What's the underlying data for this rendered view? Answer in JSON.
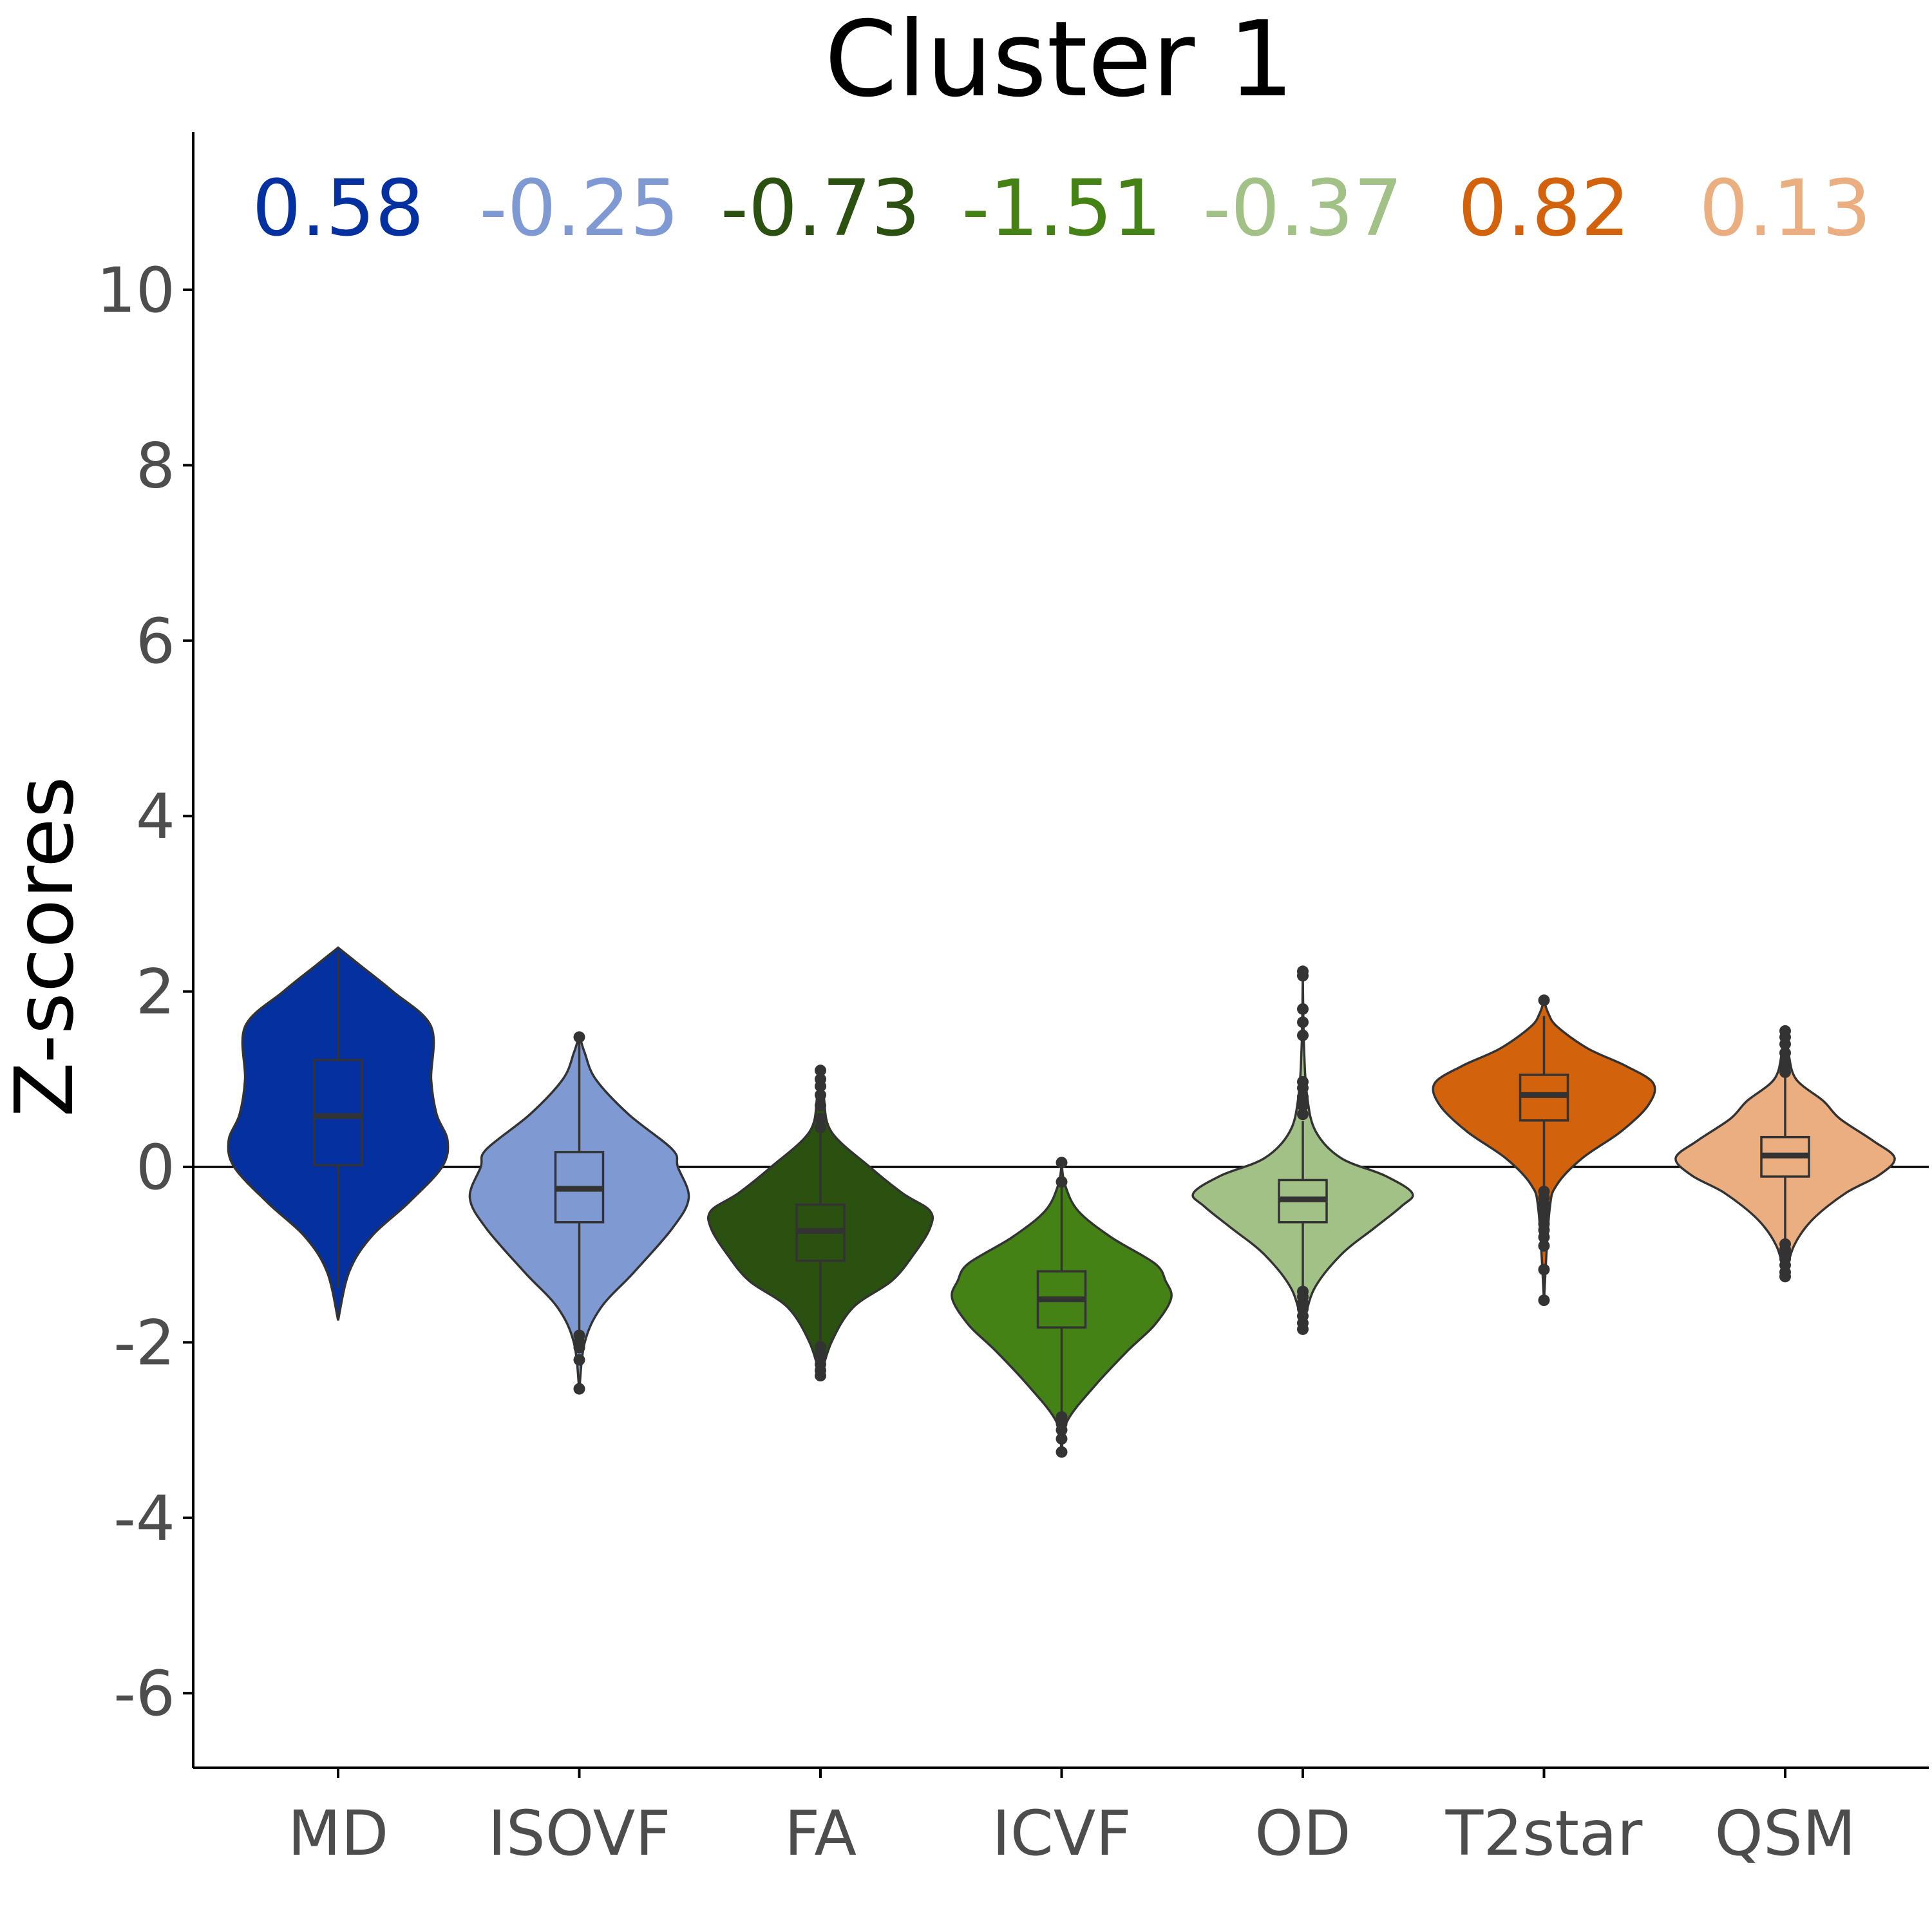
{
  "chart_data": {
    "type": "violin",
    "title": "Cluster 1",
    "xlabel": "",
    "ylabel": "Z-scores",
    "ylim": [
      -6.8,
      11.8
    ],
    "yticks": [
      -6,
      -4,
      -2,
      0,
      2,
      4,
      6,
      8,
      10
    ],
    "ytick_labels": [
      "-6",
      "-4",
      "-2",
      "0",
      "2",
      "4",
      "6",
      "8",
      "10"
    ],
    "reference_line": 0,
    "grid": false,
    "legend": "none",
    "categories": [
      "MD",
      "ISOVF",
      "FA",
      "ICVF",
      "OD",
      "T2star",
      "QSM"
    ],
    "median_labels": [
      "0.58",
      "-0.25",
      "-0.73",
      "-1.51",
      "-0.37",
      "0.82",
      "0.13"
    ],
    "series": [
      {
        "category": "MD",
        "color": "#0530a0",
        "median": 0.58,
        "q1": 0.02,
        "q3": 1.22,
        "whisker_low": -1.38,
        "whisker_high": 2.44,
        "violin": {
          "min": -1.75,
          "max": 2.5,
          "y": [
            -1.75,
            -1.2,
            -0.8,
            -0.4,
            0.0,
            0.3,
            0.6,
            1.0,
            1.6,
            2.0,
            2.3,
            2.5
          ],
          "w": [
            0.0,
            0.1,
            0.3,
            0.65,
            0.95,
            1.0,
            0.9,
            0.85,
            0.85,
            0.5,
            0.2,
            0.0
          ]
        },
        "outliers": []
      },
      {
        "category": "ISOVF",
        "color": "#7f99d2",
        "median": -0.25,
        "q1": -0.63,
        "q3": 0.17,
        "whisker_low": -1.88,
        "whisker_high": 1.42,
        "violin": {
          "min": -2.55,
          "max": 1.5,
          "y": [
            -2.55,
            -2.0,
            -1.6,
            -1.2,
            -0.7,
            -0.35,
            0.0,
            0.2,
            0.6,
            1.0,
            1.3,
            1.5
          ],
          "w": [
            0.0,
            0.05,
            0.2,
            0.5,
            0.85,
            1.0,
            0.9,
            0.85,
            0.45,
            0.15,
            0.05,
            0.0
          ]
        },
        "outliers": [
          -1.92,
          -2.0,
          -2.06,
          -2.2,
          -2.53,
          1.48
        ]
      },
      {
        "category": "FA",
        "color": "#2a510f",
        "median": -0.73,
        "q1": -1.07,
        "q3": -0.43,
        "whisker_low": -1.98,
        "whisker_high": 0.38,
        "violin": {
          "min": -2.4,
          "max": 1.1,
          "y": [
            -2.4,
            -2.0,
            -1.6,
            -1.3,
            -1.0,
            -0.7,
            -0.5,
            -0.3,
            0.0,
            0.4,
            0.8,
            1.1
          ],
          "w": [
            0.0,
            0.1,
            0.3,
            0.65,
            0.85,
            1.0,
            1.0,
            0.75,
            0.45,
            0.1,
            0.03,
            0.0
          ]
        },
        "outliers": [
          -2.05,
          -2.12,
          -2.18,
          -2.25,
          -2.32,
          -2.38,
          0.45,
          0.55,
          0.7,
          0.82,
          0.92,
          1.0,
          1.1
        ]
      },
      {
        "category": "ICVF",
        "color": "#448215",
        "median": -1.51,
        "q1": -1.83,
        "q3": -1.19,
        "whisker_low": -2.8,
        "whisker_high": -0.23,
        "violin": {
          "min": -3.25,
          "max": 0.05,
          "y": [
            -3.25,
            -2.9,
            -2.5,
            -2.1,
            -1.8,
            -1.5,
            -1.3,
            -1.1,
            -0.8,
            -0.5,
            -0.2,
            0.05
          ],
          "w": [
            0.0,
            0.05,
            0.3,
            0.6,
            0.85,
            1.0,
            0.95,
            0.85,
            0.45,
            0.15,
            0.03,
            0.0
          ]
        },
        "outliers": [
          -2.85,
          -2.93,
          -3.0,
          -3.1,
          -3.25,
          -0.17,
          0.05
        ]
      },
      {
        "category": "OD",
        "color": "#a1c186",
        "median": -0.37,
        "q1": -0.63,
        "q3": -0.15,
        "whisker_low": -1.4,
        "whisker_high": 0.52,
        "violin": {
          "min": -1.85,
          "max": 2.2,
          "y": [
            -1.85,
            -1.4,
            -1.0,
            -0.7,
            -0.45,
            -0.3,
            -0.1,
            0.1,
            0.4,
            0.8,
            1.4,
            2.2
          ],
          "w": [
            0.0,
            0.1,
            0.35,
            0.65,
            0.9,
            1.0,
            0.75,
            0.35,
            0.12,
            0.04,
            0.01,
            0.0
          ]
        },
        "outliers": [
          -1.42,
          -1.48,
          -1.55,
          -1.62,
          -1.7,
          -1.78,
          -1.85,
          0.6,
          0.7,
          0.8,
          0.9,
          0.97,
          1.5,
          1.65,
          1.8,
          2.18,
          2.23
        ]
      },
      {
        "category": "T2star",
        "color": "#d2620b",
        "median": 0.82,
        "q1": 0.53,
        "q3": 1.05,
        "whisker_low": -0.25,
        "whisker_high": 1.72,
        "violin": {
          "min": -1.52,
          "max": 1.9,
          "y": [
            -1.52,
            -0.5,
            -0.2,
            0.1,
            0.4,
            0.7,
            0.95,
            1.15,
            1.35,
            1.6,
            1.75,
            1.9
          ],
          "w": [
            0.0,
            0.05,
            0.12,
            0.35,
            0.7,
            0.95,
            1.0,
            0.75,
            0.4,
            0.12,
            0.04,
            0.0
          ]
        },
        "outliers": [
          -0.28,
          -0.35,
          -0.42,
          -0.5,
          -0.58,
          -0.65,
          -0.72,
          -0.8,
          -0.9,
          -1.17,
          -1.52,
          1.9
        ]
      },
      {
        "category": "QSM",
        "color": "#eaae80",
        "median": 0.13,
        "q1": -0.11,
        "q3": 0.34,
        "whisker_low": -0.85,
        "whisker_high": 1.05,
        "violin": {
          "min": -1.25,
          "max": 1.55,
          "y": [
            -1.25,
            -0.9,
            -0.6,
            -0.3,
            -0.1,
            0.1,
            0.3,
            0.55,
            0.75,
            1.0,
            1.3,
            1.55
          ],
          "w": [
            0.0,
            0.08,
            0.25,
            0.55,
            0.85,
            1.0,
            0.8,
            0.5,
            0.35,
            0.1,
            0.03,
            0.0
          ]
        },
        "outliers": [
          -0.88,
          -0.94,
          -1.0,
          -1.05,
          -1.12,
          -1.2,
          -1.25,
          1.08,
          1.14,
          1.2,
          1.3,
          1.4,
          1.48,
          1.55
        ]
      }
    ]
  }
}
